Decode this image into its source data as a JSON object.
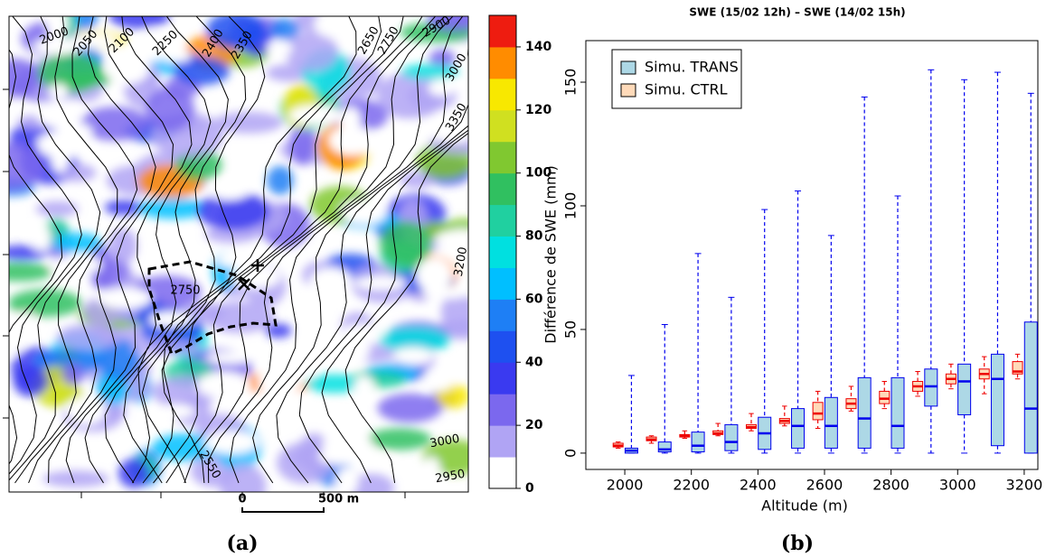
{
  "chart_data": [
    {
      "type": "map",
      "contour_labels": [
        2000,
        2050,
        2100,
        2250,
        2400,
        2350,
        2650,
        2750,
        2900,
        3000,
        3350,
        2750,
        3200,
        3000,
        2550,
        2950
      ],
      "colorbar": {
        "lim": [
          0,
          150
        ],
        "ticks": [
          0,
          20,
          40,
          60,
          80,
          100,
          120,
          140
        ],
        "colors": [
          "#ffffff",
          "#b0a4f4",
          "#7b68ee",
          "#3a3af0",
          "#1e50f0",
          "#1e7ff5",
          "#00bfff",
          "#00e0e0",
          "#20d0a0",
          "#30c060",
          "#80c830",
          "#d0e020",
          "#f8e800",
          "#ff8c00",
          "#ee1c10"
        ]
      },
      "scale_labels": [
        "0",
        "500 m"
      ],
      "caption": "(a)"
    },
    {
      "type": "box",
      "title": "SWE (15/02 12h) – SWE (14/02 15h)",
      "x_label": "Altitude (m)",
      "y_label": "Différence de SWE (mm)",
      "xlim": [
        1883,
        3241
      ],
      "ylim": [
        -6.6,
        166.8
      ],
      "xticks": [
        2000,
        2200,
        2400,
        2600,
        2800,
        3000,
        3200
      ],
      "yticks": [
        0,
        50,
        100,
        150
      ],
      "legend": "top-left",
      "series": [
        {
          "name": "Simu. TRANS",
          "color": "#add8e6",
          "border": "#0000ee",
          "x": [
            2020,
            2120,
            2220,
            2320,
            2420,
            2520,
            2620,
            2720,
            2820,
            2920,
            3020,
            3120,
            3220
          ],
          "whislo": [
            0,
            0,
            0,
            0,
            0,
            0,
            0,
            0,
            0,
            0,
            0,
            0,
            0
          ],
          "q1": [
            0,
            0.5,
            0.5,
            1,
            1.5,
            2,
            2,
            2,
            2,
            19,
            15.5,
            3,
            0
          ],
          "median": [
            1,
            1.5,
            3,
            4.5,
            8,
            11,
            11,
            14,
            11,
            27,
            29,
            30,
            18
          ],
          "q3": [
            2,
            4.5,
            8.5,
            11.5,
            14.5,
            18,
            22.5,
            30.5,
            30.5,
            34,
            36,
            40,
            53
          ],
          "whishi": [
            31.4,
            52,
            80.7,
            63,
            98.5,
            106,
            88,
            144,
            104,
            155,
            151,
            154,
            145.5
          ]
        },
        {
          "name": "Simu. CTRL",
          "color": "#ffdab9",
          "border": "#ee0000",
          "x": [
            1980,
            2080,
            2180,
            2280,
            2380,
            2480,
            2580,
            2680,
            2780,
            2880,
            2980,
            3080,
            3180
          ],
          "whislo": [
            2,
            4,
            6,
            7,
            9,
            11,
            10,
            17,
            18,
            23,
            26,
            24,
            30
          ],
          "q1": [
            2.5,
            5,
            6.5,
            7.5,
            10,
            12,
            13.5,
            18,
            20,
            25,
            28,
            30,
            32
          ],
          "median": [
            3,
            5.5,
            7,
            8,
            10.5,
            13,
            16,
            20,
            22,
            27,
            30,
            32,
            33
          ],
          "q3": [
            4,
            6.5,
            7.5,
            9,
            11.5,
            14,
            20.5,
            22,
            25,
            29,
            32,
            34,
            37
          ],
          "whishi": [
            4.5,
            7,
            9,
            12,
            16,
            19,
            25,
            27,
            29,
            33,
            36,
            39,
            40
          ]
        }
      ],
      "caption": "(b)"
    }
  ]
}
